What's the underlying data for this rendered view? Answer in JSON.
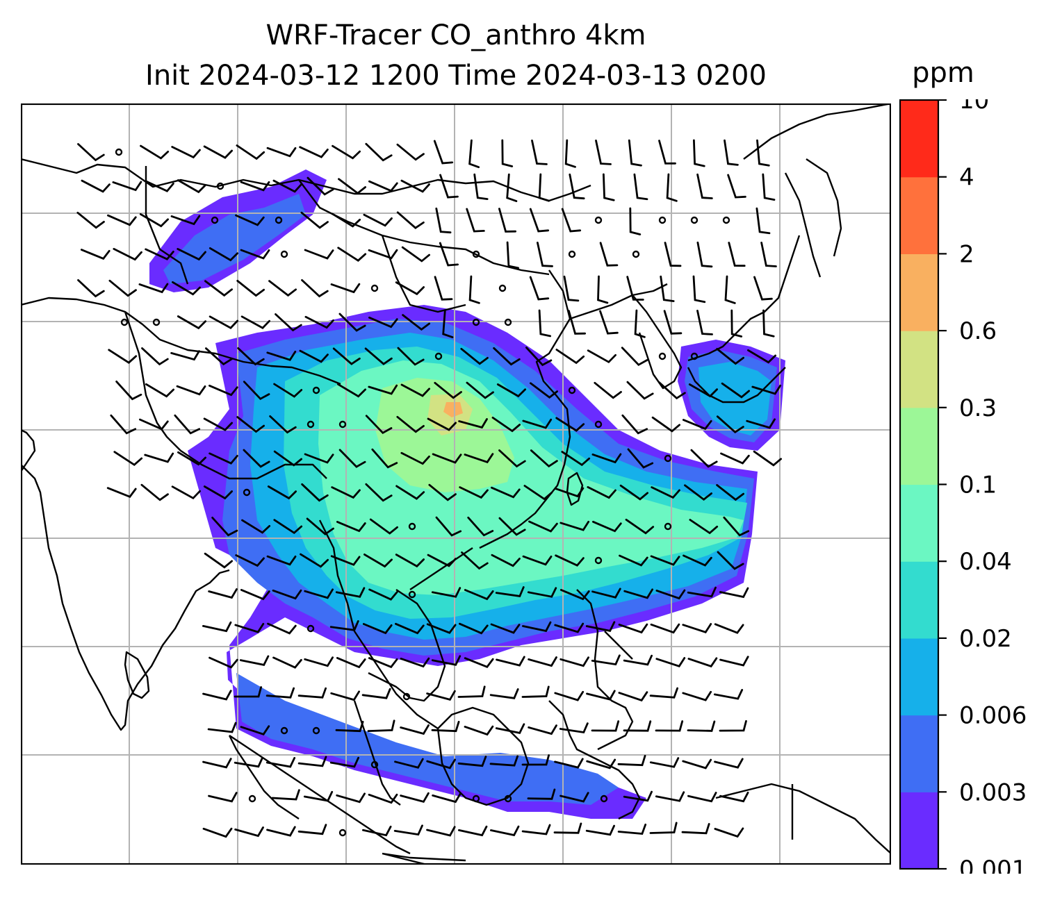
{
  "title": {
    "line1": "WRF-Tracer CO_anthro 4km",
    "line2": "Init 2024-03-12 1200 Time 2024-03-13 0200"
  },
  "colorbar": {
    "units": "ppm",
    "tick_labels": [
      "0.001",
      "0.003",
      "0.006",
      "0.02",
      "0.04",
      "0.1",
      "0.3",
      "0.6",
      "2",
      "4",
      "10"
    ],
    "colors": [
      "#6a2cff",
      "#3f6ef4",
      "#16b0ea",
      "#33dccf",
      "#6bf7c2",
      "#9cf797",
      "#d2e283",
      "#f9b060",
      "#ff713c",
      "#ff2a1a"
    ]
  },
  "map": {
    "gridlines": true,
    "wind_barbs": true,
    "coastlines": true,
    "colors": {
      "coast": "#000000",
      "grid": "#b3b3b3",
      "barb": "#000000"
    }
  }
}
